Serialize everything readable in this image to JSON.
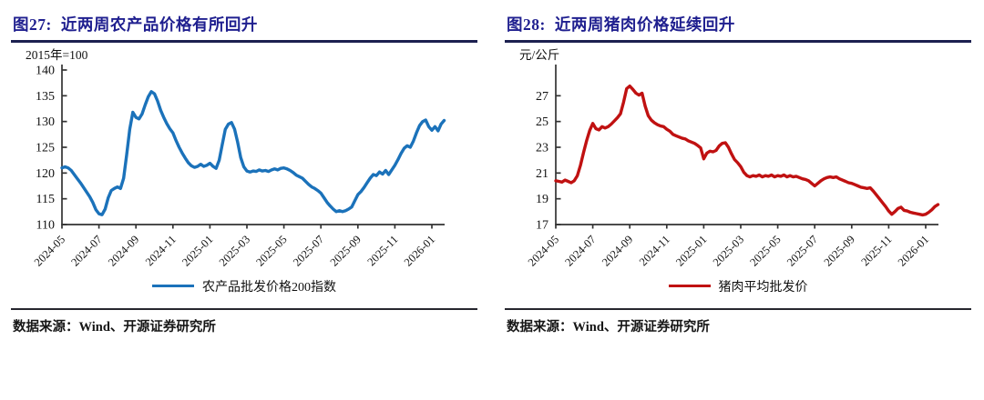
{
  "colors": {
    "title_navy": "#1f1f8f",
    "rule_navy": "#1c2050",
    "line_blue": "#1b72ba",
    "line_red": "#c01111"
  },
  "panels": [
    {
      "fig_label": "图27:",
      "title": "近两周农产品价格有所回升",
      "unit_label": "2015年=100",
      "legend": "农产品批发价格200指数",
      "source": "数据来源：Wind、开源证券研究所"
    },
    {
      "fig_label": "图28:",
      "title": "近两周猪肉价格延续回升",
      "unit_label": "元/公斤",
      "legend": "猪肉平均批发价",
      "source": "数据来源：Wind、开源证券研究所"
    }
  ],
  "chart_data": [
    {
      "type": "line",
      "title": "近两周农产品价格有所回升",
      "ylabel": "2015年=100",
      "ylim": [
        110,
        140
      ],
      "yticks": [
        110,
        115,
        120,
        125,
        130,
        135,
        140
      ],
      "xtick_labels": [
        "2024-05",
        "2024-07",
        "2024-09",
        "2024-11",
        "2025-01",
        "2025-03",
        "2025-05",
        "2025-07",
        "2025-09",
        "2025-11",
        "2026-01"
      ],
      "points_per_tick_gap": 12,
      "grid": false,
      "legend_position": "bottom",
      "series": [
        {
          "name": "农产品批发价格200指数",
          "color": "#1b72ba",
          "values": [
            121.0,
            121.2,
            121.0,
            120.5,
            119.7,
            118.9,
            118.1,
            117.2,
            116.3,
            115.4,
            114.3,
            112.9,
            112.1,
            111.9,
            113.0,
            115.2,
            116.6,
            117.0,
            117.3,
            117.0,
            119.0,
            123.5,
            128.5,
            131.8,
            130.8,
            130.5,
            131.5,
            133.2,
            134.8,
            135.8,
            135.4,
            134.0,
            132.2,
            130.8,
            129.6,
            128.6,
            127.8,
            126.3,
            125.0,
            123.9,
            122.9,
            122.0,
            121.4,
            121.1,
            121.3,
            121.7,
            121.3,
            121.5,
            121.9,
            121.3,
            120.9,
            122.5,
            125.5,
            128.5,
            129.5,
            129.8,
            128.5,
            126.0,
            123.0,
            121.2,
            120.4,
            120.2,
            120.4,
            120.3,
            120.6,
            120.4,
            120.5,
            120.3,
            120.6,
            120.8,
            120.6,
            120.9,
            121.0,
            120.8,
            120.5,
            120.1,
            119.6,
            119.3,
            119.0,
            118.4,
            117.8,
            117.3,
            117.0,
            116.6,
            116.1,
            115.2,
            114.3,
            113.6,
            113.0,
            112.5,
            112.7,
            112.5,
            112.7,
            113.0,
            113.4,
            114.6,
            115.8,
            116.4,
            117.2,
            118.1,
            119.0,
            119.7,
            119.5,
            120.2,
            119.8,
            120.5,
            119.7,
            120.6,
            121.5,
            122.6,
            123.8,
            124.8,
            125.3,
            125.0,
            126.2,
            127.8,
            129.2,
            130.0,
            130.3,
            129.0,
            128.3,
            129.0,
            128.2,
            129.5,
            130.2
          ]
        }
      ]
    },
    {
      "type": "line",
      "title": "近两周猪肉价格延续回升",
      "ylabel": "元/公斤",
      "ylim": [
        17,
        29
      ],
      "yticks": [
        17,
        19,
        21,
        23,
        25,
        27
      ],
      "xtick_labels": [
        "2024-05",
        "2024-07",
        "2024-09",
        "2024-11",
        "2025-01",
        "2025-03",
        "2025-05",
        "2025-07",
        "2025-09",
        "2025-11",
        "2026-01"
      ],
      "points_per_tick_gap": 12,
      "grid": false,
      "legend_position": "bottom",
      "series": [
        {
          "name": "猪肉平均批发价",
          "color": "#c01111",
          "values": [
            20.4,
            20.35,
            20.3,
            20.45,
            20.35,
            20.25,
            20.4,
            20.8,
            21.6,
            22.6,
            23.5,
            24.3,
            24.85,
            24.45,
            24.35,
            24.6,
            24.5,
            24.6,
            24.8,
            25.05,
            25.3,
            25.6,
            26.5,
            27.55,
            27.75,
            27.5,
            27.2,
            27.05,
            27.2,
            26.2,
            25.45,
            25.1,
            24.9,
            24.75,
            24.65,
            24.6,
            24.4,
            24.25,
            24.0,
            23.9,
            23.8,
            23.7,
            23.65,
            23.5,
            23.4,
            23.3,
            23.15,
            22.95,
            22.1,
            22.55,
            22.7,
            22.65,
            22.75,
            23.1,
            23.3,
            23.35,
            23.0,
            22.5,
            22.05,
            21.8,
            21.5,
            21.05,
            20.8,
            20.7,
            20.8,
            20.75,
            20.85,
            20.7,
            20.8,
            20.75,
            20.85,
            20.7,
            20.8,
            20.75,
            20.85,
            20.7,
            20.8,
            20.7,
            20.75,
            20.65,
            20.55,
            20.5,
            20.4,
            20.2,
            20.0,
            20.2,
            20.4,
            20.55,
            20.65,
            20.7,
            20.65,
            20.7,
            20.55,
            20.45,
            20.35,
            20.25,
            20.2,
            20.1,
            20.0,
            19.9,
            19.85,
            19.8,
            19.85,
            19.6,
            19.3,
            19.0,
            18.7,
            18.4,
            18.05,
            17.8,
            18.0,
            18.25,
            18.35,
            18.1,
            18.05,
            17.95,
            17.9,
            17.85,
            17.8,
            17.75,
            17.8,
            17.95,
            18.15,
            18.4,
            18.55
          ]
        }
      ]
    }
  ]
}
